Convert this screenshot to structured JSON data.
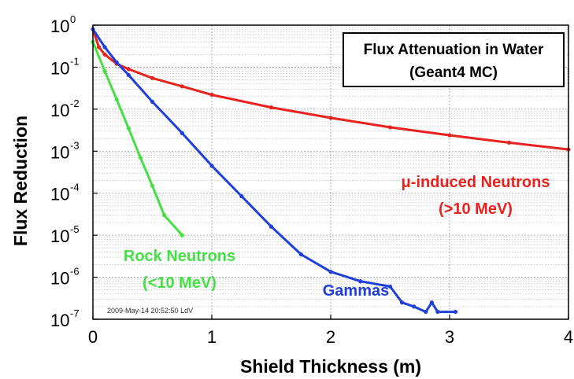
{
  "chart_data": {
    "type": "line",
    "title": "Flux Attenuation in Water",
    "subtitle": "(Geant4 MC)",
    "xlabel": "Shield Thickness (m)",
    "ylabel": "Flux Reduction",
    "xlim": [
      0,
      4
    ],
    "ylim": [
      1e-07,
      1
    ],
    "yscale": "log",
    "grid": true,
    "x_ticks": [
      "0",
      "1",
      "2",
      "3",
      "4"
    ],
    "y_ticks": [
      {
        "base": "10",
        "exp": "0"
      },
      {
        "base": "10",
        "exp": "-1"
      },
      {
        "base": "10",
        "exp": "-2"
      },
      {
        "base": "10",
        "exp": "-3"
      },
      {
        "base": "10",
        "exp": "-4"
      },
      {
        "base": "10",
        "exp": "-5"
      },
      {
        "base": "10",
        "exp": "-6"
      },
      {
        "base": "10",
        "exp": "-7"
      }
    ],
    "timestamp": "2009-May-14 20:52:50 LdV",
    "series": [
      {
        "name": "μ-induced Neutrons",
        "name_line2": "(>10 MeV)",
        "color": "#e8231f",
        "x": [
          0,
          0.05,
          0.1,
          0.2,
          0.3,
          0.5,
          0.75,
          1.0,
          1.5,
          2.0,
          2.5,
          3.0,
          3.5,
          4.0
        ],
        "y": [
          0.8,
          0.3,
          0.2,
          0.12,
          0.09,
          0.055,
          0.035,
          0.022,
          0.011,
          0.0062,
          0.0037,
          0.0024,
          0.0016,
          0.0011
        ]
      },
      {
        "name": "Gammas",
        "name_line2": "",
        "color": "#1f3fd8",
        "x": [
          0,
          0.1,
          0.2,
          0.3,
          0.5,
          0.75,
          1.0,
          1.25,
          1.5,
          1.75,
          2.0,
          2.25,
          2.5,
          2.6,
          2.7,
          2.8,
          2.85,
          2.9,
          3.05
        ],
        "y": [
          0.8,
          0.3,
          0.13,
          0.065,
          0.015,
          0.0027,
          0.00045,
          8.5e-05,
          1.6e-05,
          3.5e-06,
          1.35e-06,
          8e-07,
          6e-07,
          2.5e-07,
          2e-07,
          1.5e-07,
          2.5e-07,
          1.5e-07,
          1.5e-07
        ]
      },
      {
        "name": "Rock Neutrons",
        "name_line2": "(<10 MeV)",
        "color": "#44e044",
        "x": [
          0,
          0.1,
          0.2,
          0.3,
          0.4,
          0.5,
          0.6,
          0.75
        ],
        "y": [
          0.4,
          0.08,
          0.017,
          0.0035,
          0.0007,
          0.00015,
          3e-05,
          1e-05
        ]
      }
    ]
  }
}
